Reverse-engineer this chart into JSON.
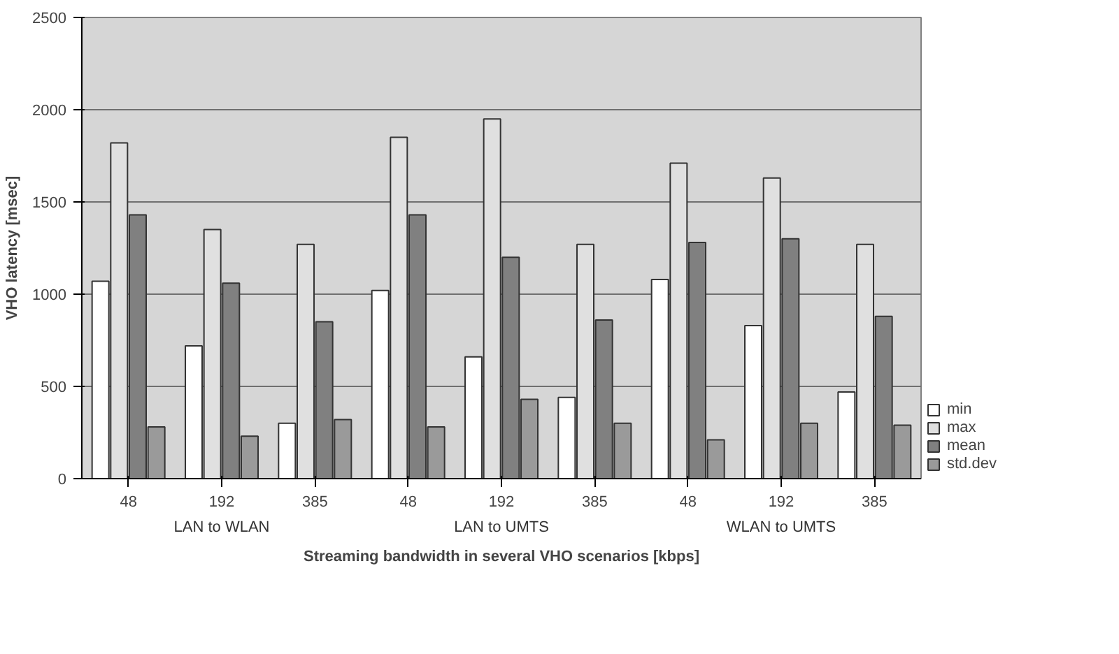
{
  "chart_data": {
    "type": "bar",
    "xlabel": "Streaming bandwidth in several VHO scenarios [kbps]",
    "ylabel": "VHO latency [msec]",
    "categories": [
      "48",
      "192",
      "385",
      "48",
      "192",
      "385",
      "48",
      "192",
      "385"
    ],
    "annotations": [
      "LAN to WLAN",
      "LAN to UMTS",
      "WLAN to UMTS"
    ],
    "series": [
      {
        "name": "min",
        "color": "#ffffff",
        "values": [
          1070,
          720,
          300,
          1020,
          660,
          440,
          1080,
          830,
          470
        ]
      },
      {
        "name": "max",
        "color": "#e0e0e0",
        "values": [
          1820,
          1350,
          1270,
          1850,
          1950,
          1270,
          1710,
          1630,
          1270
        ]
      },
      {
        "name": "mean",
        "color": "#808080",
        "values": [
          1430,
          1060,
          850,
          1430,
          1200,
          860,
          1280,
          1300,
          880
        ]
      },
      {
        "name": "std.dev",
        "color": "#9a9a9a",
        "values": [
          280,
          230,
          320,
          280,
          430,
          300,
          210,
          300,
          290
        ]
      }
    ],
    "ylim": [
      0,
      2500
    ],
    "yticks": [
      0,
      500,
      1000,
      1500,
      2000,
      2500
    ],
    "grid": "y",
    "legend": "bottom right"
  }
}
